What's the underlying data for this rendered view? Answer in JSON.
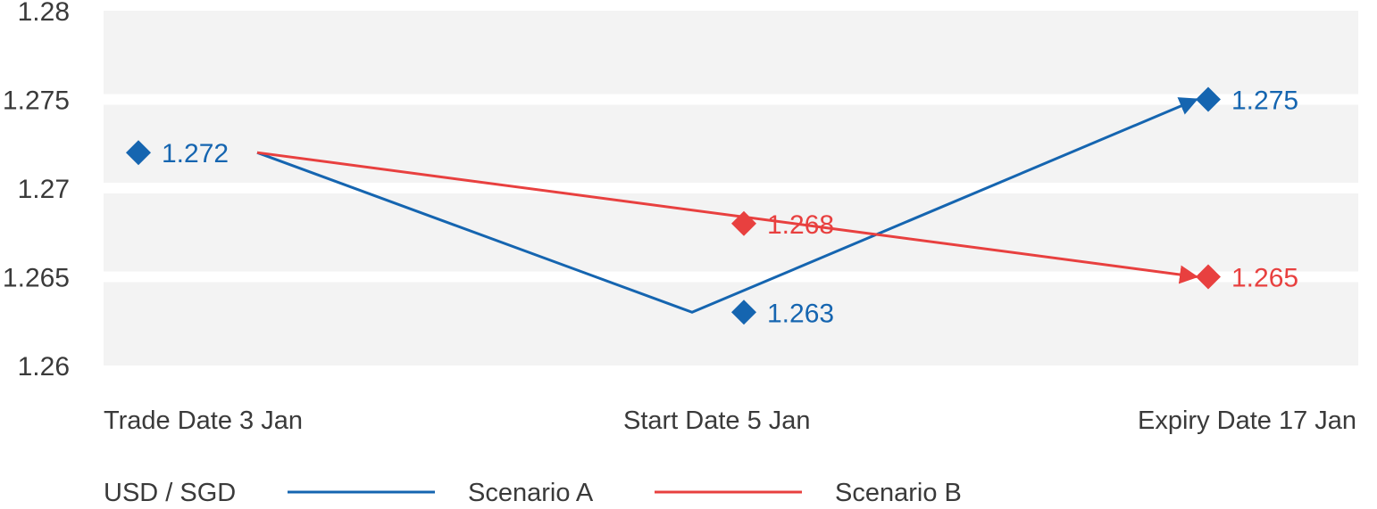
{
  "chart_data": {
    "type": "line",
    "categories": [
      "Trade Date 3 Jan",
      "Start Date 5 Jan",
      "Expiry Date 17 Jan"
    ],
    "ylim": [
      1.26,
      1.28
    ],
    "yticks": [
      1.26,
      1.265,
      1.27,
      1.275,
      1.28
    ],
    "ytick_labels": [
      "1.26",
      "1.265",
      "1.27",
      "1.275",
      "1.28"
    ],
    "grid": "alternating horizontal bands",
    "legend_title": "USD / SGD",
    "legend_placement": "bottom",
    "series": [
      {
        "name": "Scenario A",
        "color": "#1565b0",
        "values": [
          1.272,
          1.263,
          1.275
        ],
        "labels": [
          "1.272",
          "1.263",
          "1.275"
        ]
      },
      {
        "name": "Scenario B",
        "color": "#e8403f",
        "values": [
          1.272,
          1.268,
          1.265
        ],
        "labels": [
          "",
          "1.268",
          "1.265"
        ]
      }
    ]
  }
}
